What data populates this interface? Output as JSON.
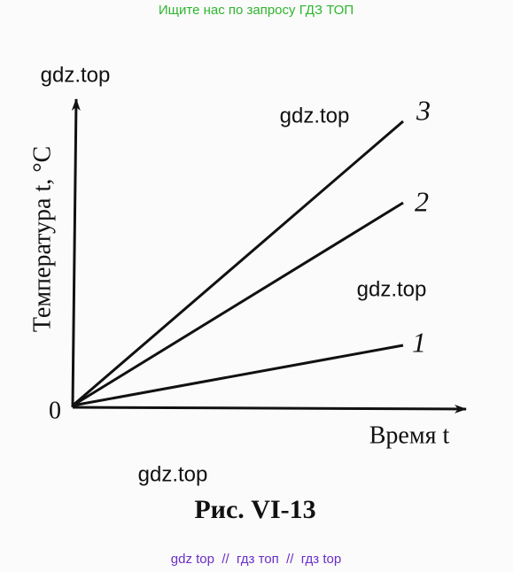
{
  "header": {
    "text": "Ищите нас по запросу ГДЗ ТОП"
  },
  "figure": {
    "y_axis_label": "Температура t, °C",
    "x_axis_label": "Время t",
    "origin_label": "0",
    "line_labels": [
      "1",
      "2",
      "3"
    ],
    "caption": "Рис. VI-13"
  },
  "watermarks": [
    "gdz.top",
    "gdz.top",
    "gdz.top",
    "gdz.top"
  ],
  "footer": {
    "text": "gdz top  //  гдз топ  //  гдз top"
  }
}
